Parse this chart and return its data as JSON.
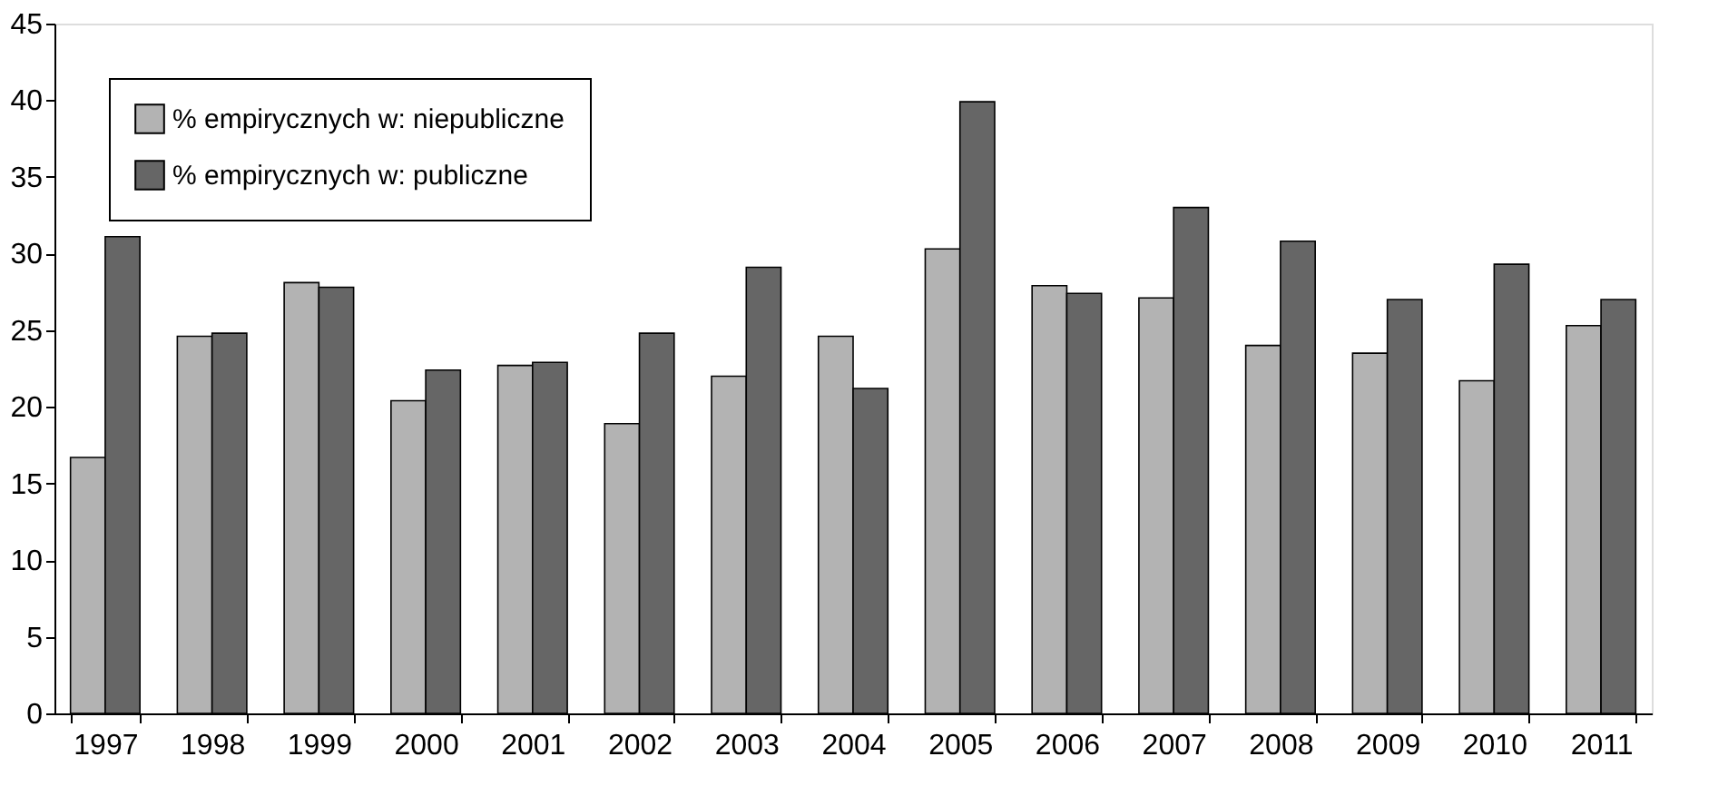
{
  "chart_data": {
    "type": "bar",
    "categories": [
      "1997",
      "1998",
      "1999",
      "2000",
      "2001",
      "2002",
      "2003",
      "2004",
      "2005",
      "2006",
      "2007",
      "2008",
      "2009",
      "2010",
      "2011"
    ],
    "series": [
      {
        "name": "% empirycznych w: niepubliczne",
        "color": "#b3b3b3",
        "values": [
          16.7,
          24.6,
          28.1,
          20.4,
          22.7,
          18.9,
          22.0,
          24.6,
          30.3,
          27.9,
          27.1,
          24.0,
          23.5,
          21.7,
          25.3
        ]
      },
      {
        "name": "% empirycznych w: publiczne",
        "color": "#666666",
        "values": [
          31.1,
          24.8,
          27.8,
          22.4,
          22.9,
          24.8,
          29.1,
          21.2,
          39.9,
          27.4,
          33.0,
          30.8,
          27.0,
          29.3,
          27.0
        ]
      }
    ],
    "ylim": [
      0,
      45
    ],
    "yticks": [
      0,
      5,
      10,
      15,
      20,
      25,
      30,
      35,
      40,
      45
    ],
    "grid": false,
    "legend": "top left"
  }
}
